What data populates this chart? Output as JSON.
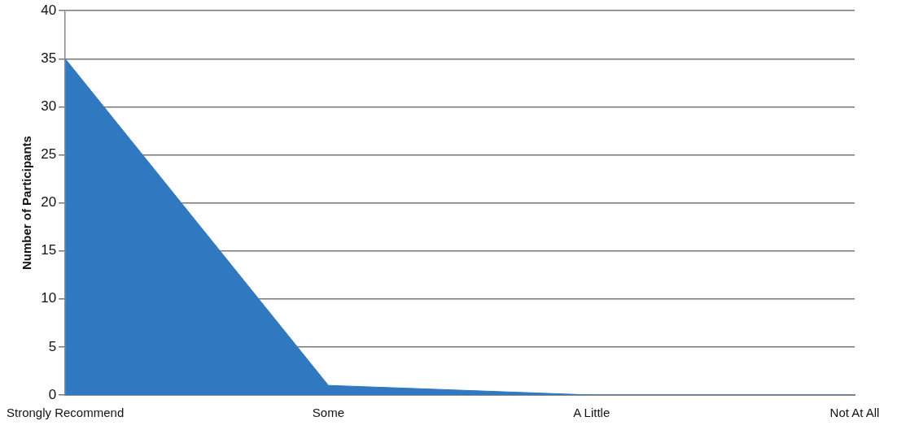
{
  "chart_data": {
    "type": "area",
    "ylabel": "Number of Participants",
    "categories": [
      "Strongly Recommend",
      "Some",
      "A Little",
      "Not At All"
    ],
    "series": [
      {
        "color": "#3079c0",
        "values": [
          35,
          1,
          0,
          0
        ]
      }
    ],
    "ylim": [
      0,
      40
    ],
    "yticks": [
      0,
      5,
      10,
      15,
      20,
      25,
      30,
      35,
      40
    ],
    "grid": "y",
    "legend": false
  }
}
